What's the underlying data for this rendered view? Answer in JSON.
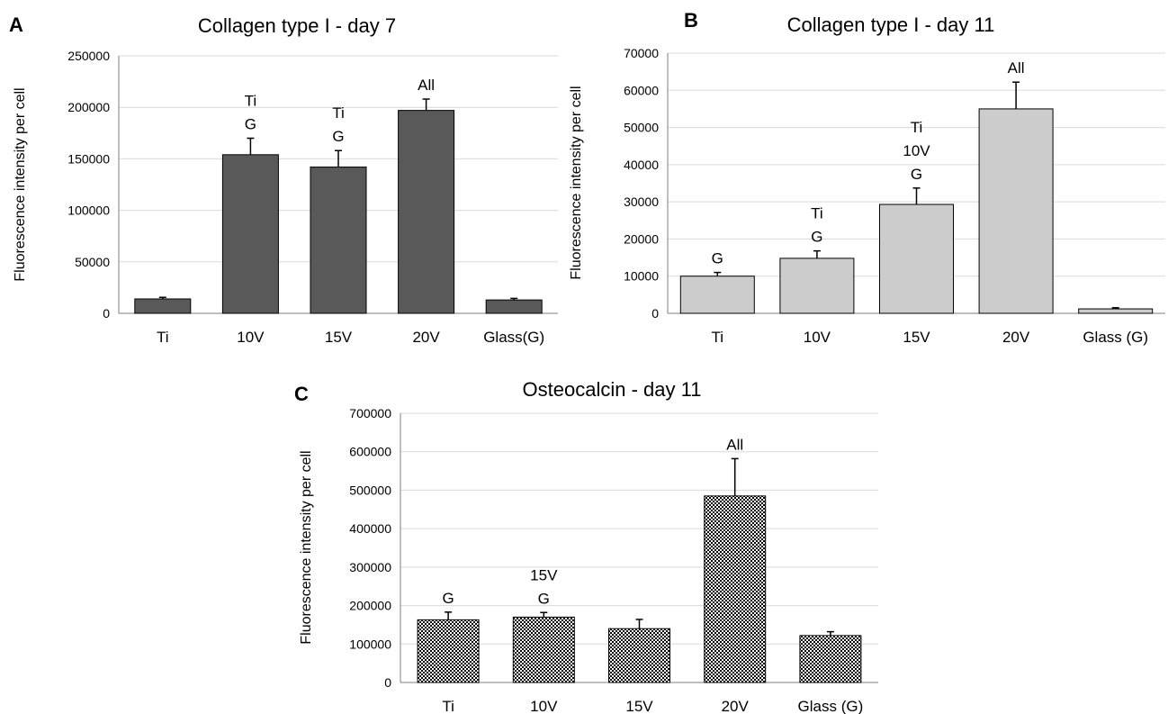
{
  "chart_data": [
    {
      "panel": "A",
      "type": "bar",
      "title": "Collagen type I - day 7",
      "ylabel": "Fluorescence intensity per cell",
      "xlabel": "",
      "categories": [
        "Ti",
        "10V",
        "15V",
        "20V",
        "Glass(G)"
      ],
      "values": [
        14000,
        154000,
        142000,
        197000,
        13000
      ],
      "errors": [
        1500,
        16000,
        16000,
        11000,
        1500
      ],
      "annotations": [
        [],
        [
          "Ti",
          "G"
        ],
        [
          "Ti",
          "G"
        ],
        [
          "All"
        ],
        []
      ],
      "yticks": [
        0,
        50000,
        100000,
        150000,
        200000,
        250000
      ],
      "ylim": [
        0,
        250000
      ],
      "grid": true,
      "bar_color": "#595959",
      "fill": "solid"
    },
    {
      "panel": "B",
      "type": "bar",
      "title": "Collagen type I - day 11",
      "ylabel": "Fluorescence intensity per cell",
      "xlabel": "",
      "categories": [
        "Ti",
        "10V",
        "15V",
        "20V",
        "Glass (G)"
      ],
      "values": [
        10000,
        14800,
        29300,
        55000,
        1200
      ],
      "errors": [
        1000,
        2000,
        4400,
        7200,
        300
      ],
      "annotations": [
        [
          "G"
        ],
        [
          "Ti",
          "G"
        ],
        [
          "Ti",
          "10V",
          "G"
        ],
        [
          "All"
        ],
        []
      ],
      "yticks": [
        0,
        10000,
        20000,
        30000,
        40000,
        50000,
        60000,
        70000
      ],
      "ylim": [
        0,
        70000
      ],
      "grid": true,
      "bar_color": "#cccccc",
      "fill": "solid"
    },
    {
      "panel": "C",
      "type": "bar",
      "title": "Osteocalcin - day 11",
      "ylabel": "Fluorescence intensity per cell",
      "xlabel": "",
      "categories": [
        "Ti",
        "10V",
        "15V",
        "20V",
        "Glass (G)"
      ],
      "values": [
        163000,
        170000,
        140000,
        485000,
        122000
      ],
      "errors": [
        20000,
        12000,
        24000,
        97000,
        10000
      ],
      "annotations": [
        [
          "G"
        ],
        [
          "15V",
          "G"
        ],
        [],
        [
          "All"
        ],
        []
      ],
      "yticks": [
        0,
        100000,
        200000,
        300000,
        400000,
        500000,
        600000,
        700000
      ],
      "ylim": [
        0,
        700000
      ],
      "grid": true,
      "bar_color": "#000000",
      "fill": "checker"
    }
  ]
}
